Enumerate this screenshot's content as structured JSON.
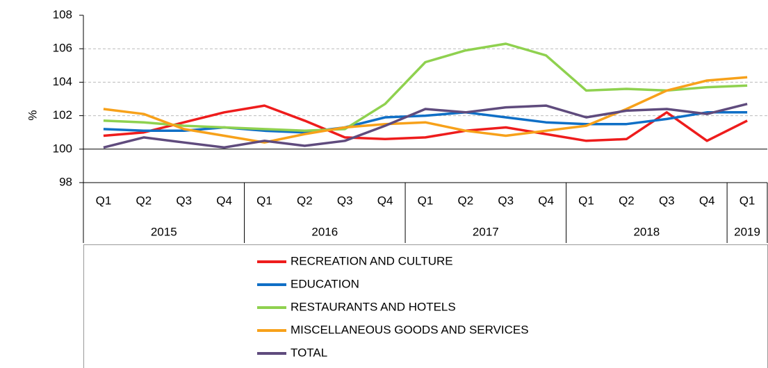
{
  "chart_data": {
    "type": "line",
    "y_label": "%",
    "categories": [
      "Q1",
      "Q2",
      "Q3",
      "Q4",
      "Q1",
      "Q2",
      "Q3",
      "Q4",
      "Q1",
      "Q2",
      "Q3",
      "Q4",
      "Q1",
      "Q2",
      "Q3",
      "Q4",
      "Q1"
    ],
    "groups": [
      {
        "label": "2015",
        "count": 4
      },
      {
        "label": "2016",
        "count": 4
      },
      {
        "label": "2017",
        "count": 4
      },
      {
        "label": "2018",
        "count": 4
      },
      {
        "label": "2019",
        "count": 1
      }
    ],
    "ylim": [
      98,
      108
    ],
    "yticks": [
      98,
      100,
      102,
      104,
      106,
      108
    ],
    "x_axis_crosses": 100,
    "grid": true,
    "legend": "bottom",
    "series": [
      {
        "name": "RECREATION AND CULTURE",
        "color": "#ee1c1c",
        "values": [
          100.8,
          101.0,
          101.6,
          102.2,
          102.6,
          101.7,
          100.7,
          100.6,
          100.7,
          101.1,
          101.3,
          100.9,
          100.5,
          100.6,
          102.2,
          100.5,
          101.7
        ]
      },
      {
        "name": "EDUCATION",
        "color": "#0f6fc6",
        "values": [
          101.2,
          101.1,
          101.1,
          101.3,
          101.1,
          101.0,
          101.3,
          101.9,
          102.0,
          102.2,
          101.9,
          101.6,
          101.5,
          101.5,
          101.8,
          102.2,
          102.2
        ]
      },
      {
        "name": "RESTAURANTS AND HOTELS",
        "color": "#8fd14f",
        "values": [
          101.7,
          101.6,
          101.4,
          101.3,
          101.2,
          101.1,
          101.2,
          102.7,
          105.2,
          105.9,
          106.3,
          105.6,
          103.5,
          103.6,
          103.5,
          103.7,
          103.8
        ]
      },
      {
        "name": "MISCELLANEOUS GOODS AND SERVICES",
        "color": "#f7a11a",
        "values": [
          102.4,
          102.1,
          101.2,
          100.8,
          100.4,
          100.9,
          101.3,
          101.5,
          101.6,
          101.1,
          100.8,
          101.1,
          101.4,
          102.4,
          103.5,
          104.1,
          104.3
        ]
      },
      {
        "name": "TOTAL",
        "color": "#5f4b7d",
        "values": [
          100.1,
          100.7,
          100.4,
          100.1,
          100.5,
          100.2,
          100.5,
          101.4,
          102.4,
          102.2,
          102.5,
          102.6,
          101.9,
          102.3,
          102.4,
          102.1,
          102.7
        ]
      }
    ]
  }
}
